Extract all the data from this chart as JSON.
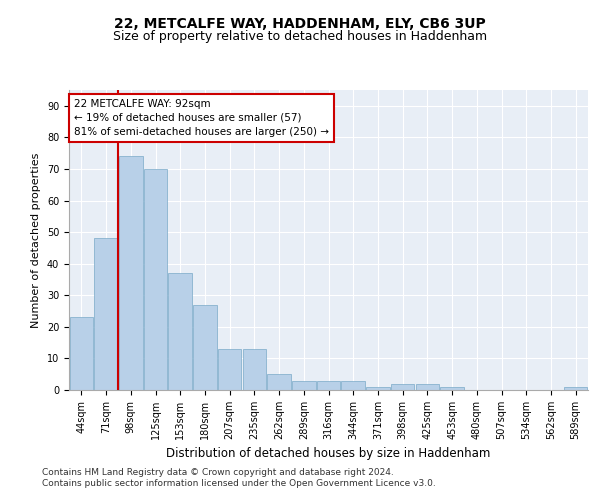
{
  "title_line1": "22, METCALFE WAY, HADDENHAM, ELY, CB6 3UP",
  "title_line2": "Size of property relative to detached houses in Haddenham",
  "xlabel": "Distribution of detached houses by size in Haddenham",
  "ylabel": "Number of detached properties",
  "bar_labels": [
    "44sqm",
    "71sqm",
    "98sqm",
    "125sqm",
    "153sqm",
    "180sqm",
    "207sqm",
    "235sqm",
    "262sqm",
    "289sqm",
    "316sqm",
    "344sqm",
    "371sqm",
    "398sqm",
    "425sqm",
    "453sqm",
    "480sqm",
    "507sqm",
    "534sqm",
    "562sqm",
    "589sqm"
  ],
  "bar_heights": [
    23,
    48,
    74,
    70,
    37,
    27,
    13,
    13,
    5,
    3,
    3,
    3,
    1,
    2,
    2,
    1,
    0,
    0,
    0,
    0,
    1
  ],
  "bar_color": "#b8d0e8",
  "bar_edge_color": "#7aaac8",
  "bg_color": "#e8eef6",
  "grid_color": "#ffffff",
  "red_line_index": 2,
  "red_line_color": "#cc0000",
  "annotation_text": "22 METCALFE WAY: 92sqm\n← 19% of detached houses are smaller (57)\n81% of semi-detached houses are larger (250) →",
  "annotation_box_color": "#ffffff",
  "annotation_box_edge": "#cc0000",
  "ylim": [
    0,
    95
  ],
  "yticks": [
    0,
    10,
    20,
    30,
    40,
    50,
    60,
    70,
    80,
    90
  ],
  "footer_text": "Contains HM Land Registry data © Crown copyright and database right 2024.\nContains public sector information licensed under the Open Government Licence v3.0.",
  "title_fontsize": 10,
  "subtitle_fontsize": 9,
  "axis_label_fontsize": 8,
  "tick_fontsize": 7,
  "annotation_fontsize": 7.5,
  "footer_fontsize": 6.5
}
